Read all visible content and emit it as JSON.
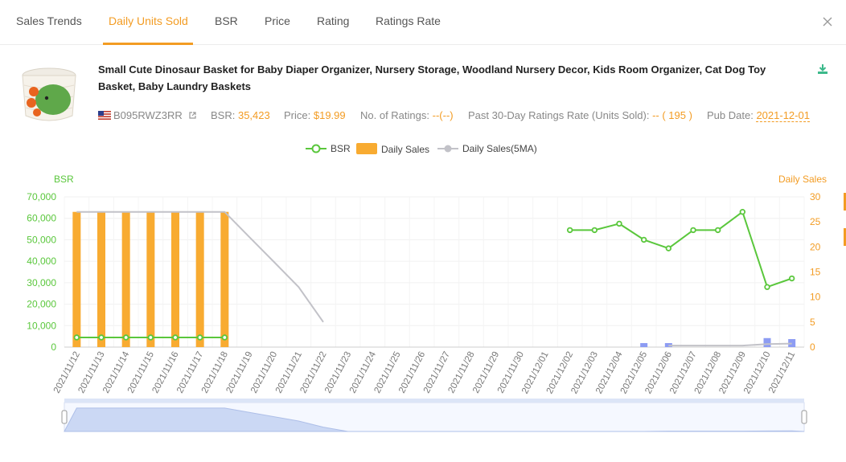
{
  "tabs": [
    {
      "label": "Sales Trends",
      "active": false
    },
    {
      "label": "Daily Units Sold",
      "active": true
    },
    {
      "label": "BSR",
      "active": false
    },
    {
      "label": "Price",
      "active": false
    },
    {
      "label": "Rating",
      "active": false
    },
    {
      "label": "Ratings Rate",
      "active": false
    }
  ],
  "product": {
    "title": "Small Cute Dinosaur Basket for Baby Diaper Organizer, Nursery Storage, Woodland Nursery Decor, Kids Room Organizer, Cat Dog Toy Basket, Baby Laundry Baskets",
    "asin": "B095RWZ3RR",
    "bsr_label": "BSR:",
    "bsr_value": "35,423",
    "price_label": "Price:",
    "price_value": "$19.99",
    "ratings_label": "No. of Ratings:",
    "ratings_value": "--(--)",
    "rate_label": "Past 30-Day Ratings Rate (Units Sold):",
    "rate_value": "-- ( 195 )",
    "pub_label": "Pub Date:",
    "pub_value": "2021-12-01"
  },
  "legend": [
    {
      "label": "BSR",
      "color": "#5ac73c"
    },
    {
      "label": "Daily Sales",
      "color": "#f8ab31"
    },
    {
      "label": "Daily Sales(5MA)",
      "color": "#c2c2c8"
    }
  ],
  "icons": [
    "close-icon",
    "download-icon",
    "us-flag-icon",
    "external-link-icon"
  ],
  "colors": {
    "accent": "#f39c23",
    "bsr": "#5ac73c",
    "sales": "#f8ab31",
    "sales_recent": "#8d9cf3",
    "ma": "#c2c2c8"
  },
  "chart_data": {
    "type": "bar",
    "left_axis_label": "BSR",
    "right_axis_label": "Daily Sales",
    "left_ticks": [
      "70,000",
      "60,000",
      "50,000",
      "40,000",
      "30,000",
      "20,000",
      "10,000",
      "0"
    ],
    "right_ticks": [
      "30",
      "25",
      "20",
      "15",
      "10",
      "5",
      "0"
    ],
    "ylim_left": [
      0,
      70000
    ],
    "ylim_right": [
      0,
      30
    ],
    "categories": [
      "2021/11/12",
      "2021/11/13",
      "2021/11/14",
      "2021/11/15",
      "2021/11/16",
      "2021/11/17",
      "2021/11/18",
      "2021/11/19",
      "2021/11/20",
      "2021/11/21",
      "2021/11/22",
      "2021/11/23",
      "2021/11/24",
      "2021/11/25",
      "2021/11/26",
      "2021/11/27",
      "2021/11/28",
      "2021/11/29",
      "2021/11/30",
      "2021/12/01",
      "2021/12/02",
      "2021/12/03",
      "2021/12/04",
      "2021/12/05",
      "2021/12/06",
      "2021/12/07",
      "2021/12/08",
      "2021/12/09",
      "2021/12/10",
      "2021/12/11"
    ],
    "series": [
      {
        "name": "BSR",
        "axis": "left",
        "values": [
          4500,
          4500,
          4500,
          4500,
          4500,
          4500,
          4500,
          null,
          null,
          null,
          null,
          null,
          null,
          null,
          null,
          null,
          null,
          null,
          null,
          null,
          54500,
          54500,
          57500,
          50000,
          46000,
          54500,
          54500,
          63000,
          28000,
          32000
        ]
      },
      {
        "name": "Daily Sales",
        "axis": "right",
        "values": [
          27,
          27,
          27,
          27,
          27,
          27,
          27,
          null,
          null,
          null,
          null,
          null,
          null,
          null,
          null,
          null,
          null,
          null,
          null,
          null,
          null,
          null,
          null,
          0.8,
          0.8,
          null,
          null,
          null,
          1.8,
          1.6
        ]
      },
      {
        "name": "Daily Sales(5MA)",
        "axis": "right",
        "values": [
          27,
          27,
          27,
          27,
          27,
          27,
          27,
          22,
          17,
          12,
          5,
          null,
          null,
          null,
          null,
          null,
          null,
          null,
          null,
          null,
          null,
          null,
          null,
          null,
          0.3,
          0.3,
          0.3,
          0.3,
          0.6,
          0.7
        ]
      }
    ]
  }
}
